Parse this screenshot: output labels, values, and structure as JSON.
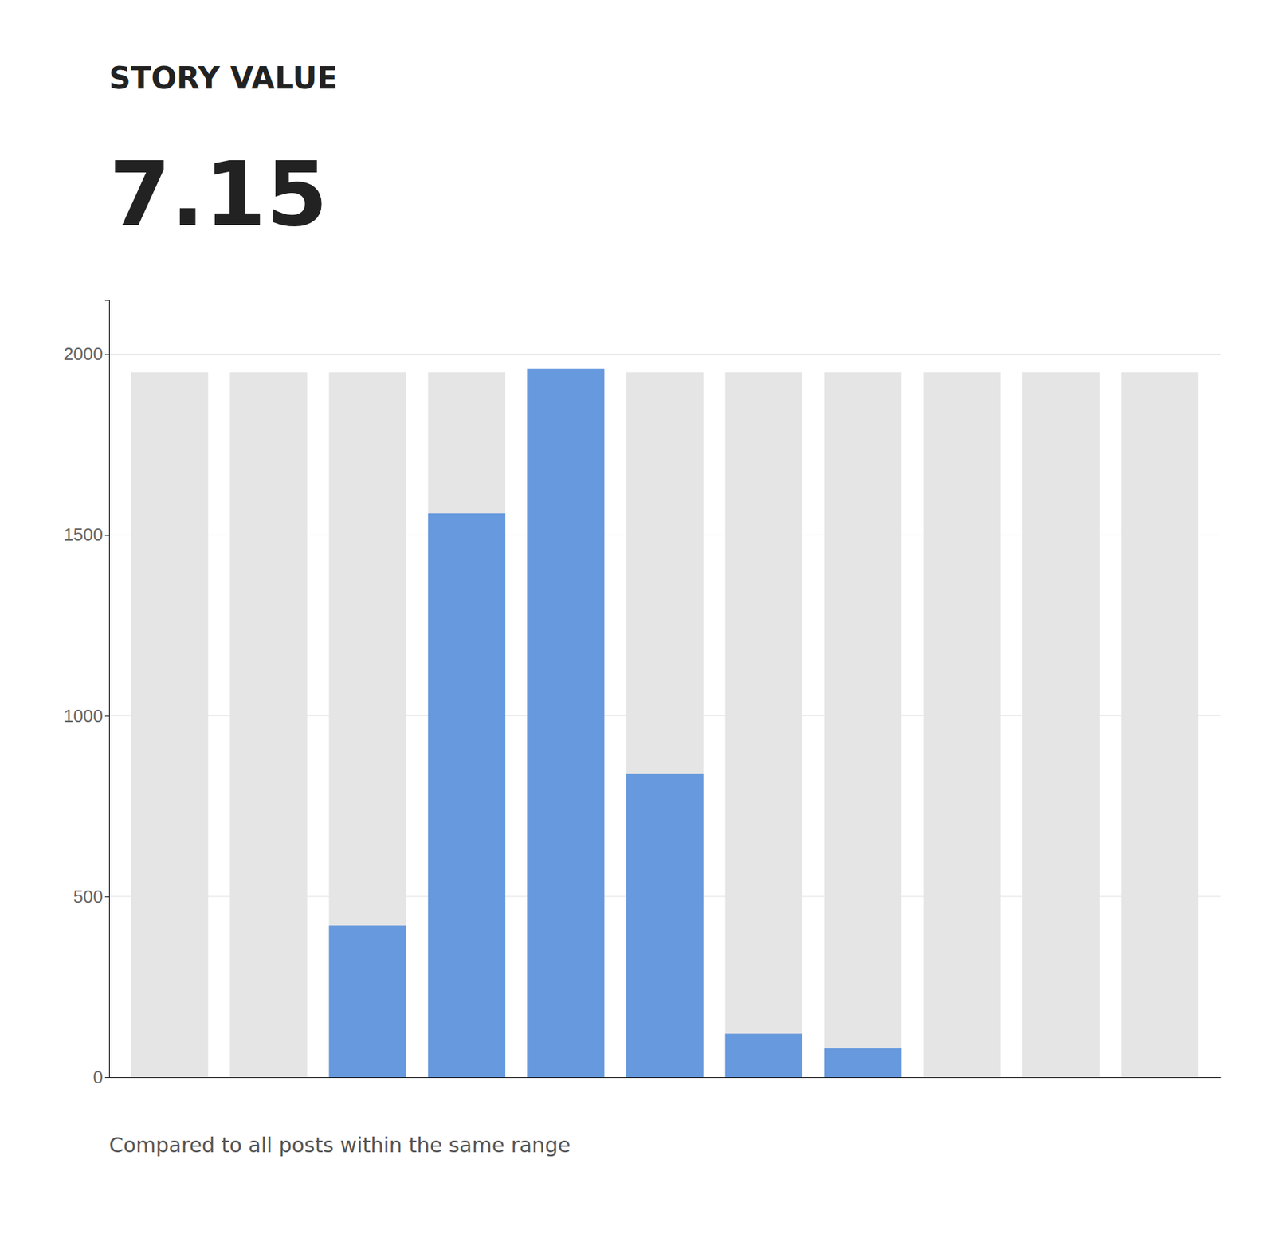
{
  "chart_data": {
    "type": "bar",
    "title": "STORY VALUE",
    "subtitle": "7.15",
    "annotations": [
      "Compared to all posts within the same range"
    ],
    "categories": [
      null,
      null,
      null,
      null,
      null,
      null,
      null,
      null,
      null,
      null,
      null
    ],
    "series": [
      {
        "color": "#e5e5e5",
        "values": [
          1950,
          1950,
          1950,
          1950,
          1950,
          1950,
          1950,
          1950,
          1950,
          1950,
          1950
        ]
      },
      {
        "color": "#6699dd",
        "values": [
          0,
          0,
          420,
          1560,
          1960,
          840,
          120,
          80,
          0,
          0,
          0
        ]
      }
    ],
    "ylim": [
      0,
      2150
    ],
    "yticks": [
      0,
      500,
      1000,
      1500,
      2000
    ],
    "grid": true,
    "tick_labels": "y"
  }
}
